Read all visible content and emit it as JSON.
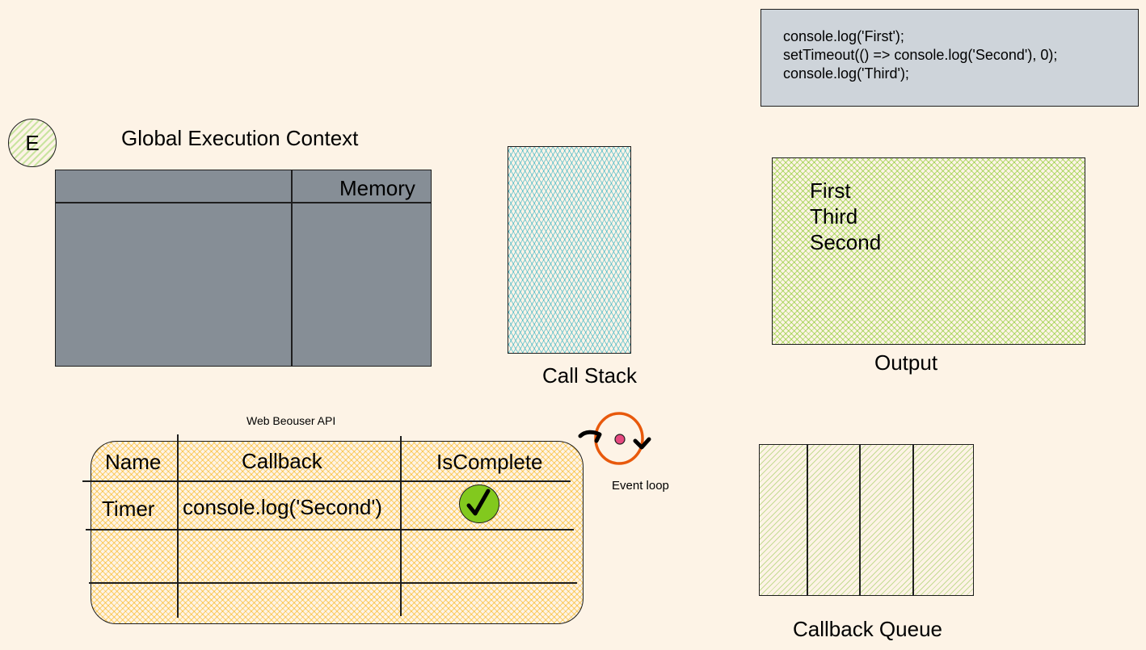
{
  "code": {
    "lines": [
      "console.log('First');",
      "setTimeout(() => console.log('Second'), 0);",
      "console.log('Third');"
    ]
  },
  "badge": {
    "letter": "E"
  },
  "gec": {
    "title": "Global Execution Context",
    "memory_label": "Memory"
  },
  "call_stack": {
    "label": "Call Stack"
  },
  "output": {
    "lines": [
      "First",
      "Third",
      "Second"
    ],
    "label": "Output"
  },
  "web_api": {
    "title": "Web Beouser API",
    "headers": [
      "Name",
      "Callback",
      "IsComplete"
    ],
    "rows": [
      {
        "name": "Timer",
        "callback": "console.log('Second')",
        "is_complete_icon": "check-icon"
      }
    ]
  },
  "event_loop": {
    "label": "Event loop"
  },
  "callback_queue": {
    "label": "Callback Queue"
  },
  "colors": {
    "background": "#fdf3e6",
    "code_box": "#ced4da",
    "gec_fill": "#868e96",
    "call_stack_hatch": "#15aabf",
    "output_hatch": "#82c91e",
    "web_api_hatch": "#fab005",
    "event_loop_ring": "#e8590c",
    "event_loop_dot": "#e64980",
    "check_fill": "#82c91e"
  }
}
